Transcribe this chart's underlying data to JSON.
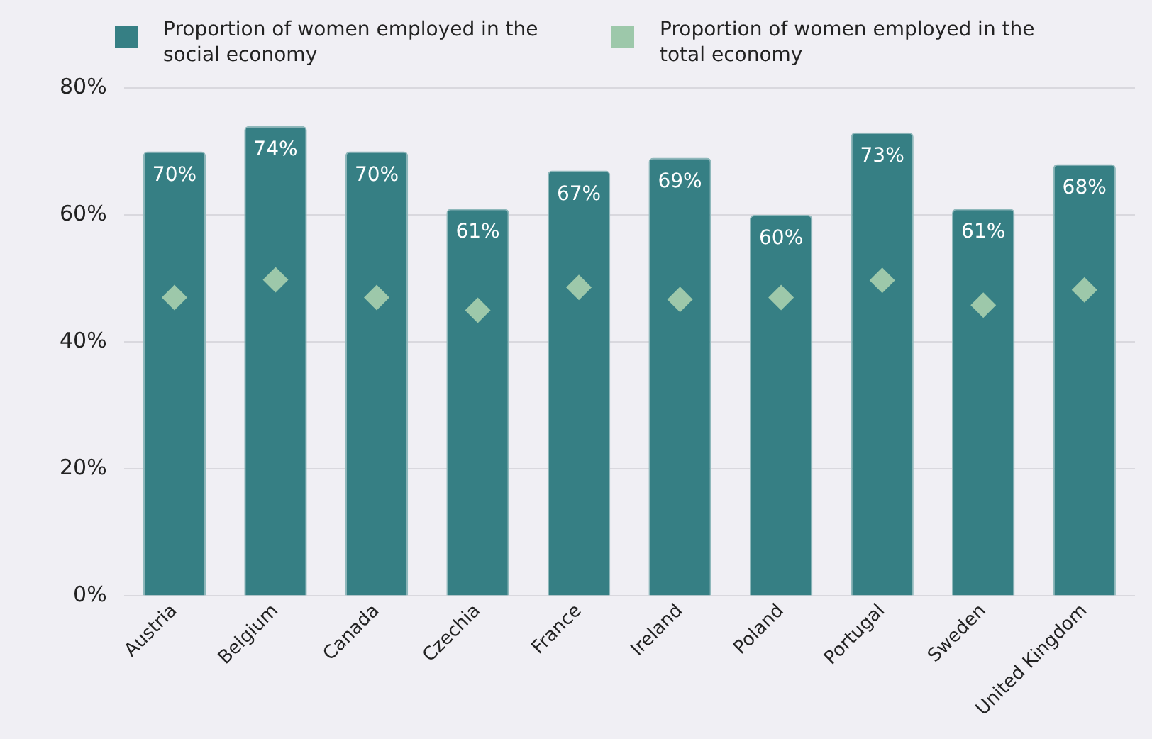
{
  "chart_data": {
    "type": "bar",
    "categories": [
      "Austria",
      "Belgium",
      "Canada",
      "Czechia",
      "France",
      "Ireland",
      "Poland",
      "Portugal",
      "Sweden",
      "United Kingdom"
    ],
    "series": [
      {
        "name": "Proportion of women employed in the social economy",
        "color": "#367f84",
        "values": [
          70,
          74,
          70,
          61,
          67,
          69,
          60,
          73,
          61,
          68
        ],
        "value_labels": [
          "70%",
          "74%",
          "70%",
          "61%",
          "67%",
          "69%",
          "60%",
          "73%",
          "61%",
          "68%"
        ]
      },
      {
        "name": "Proportion of women employed in the total economy",
        "type": "scatter",
        "color": "#9dc8aa",
        "values": [
          47.0,
          49.8,
          47.0,
          45.0,
          48.6,
          46.7,
          47.0,
          49.7,
          45.8,
          48.2
        ]
      }
    ],
    "ylim": [
      0,
      80
    ],
    "yticks": [
      {
        "value": 0,
        "label": "0%"
      },
      {
        "value": 20,
        "label": "20%"
      },
      {
        "value": 40,
        "label": "40%"
      },
      {
        "value": 60,
        "label": "60%"
      },
      {
        "value": 80,
        "label": "80%"
      }
    ],
    "grid": "y",
    "legend": "top",
    "marker": "diamond"
  }
}
